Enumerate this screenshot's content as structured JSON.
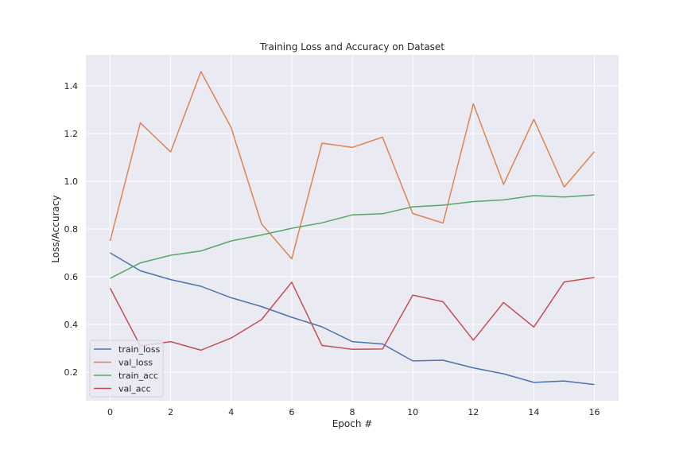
{
  "chart_data": {
    "type": "line",
    "title": "Training Loss and Accuracy on Dataset",
    "xlabel": "Epoch #",
    "ylabel": "Loss/Accuracy",
    "x": [
      0,
      1,
      2,
      3,
      4,
      5,
      6,
      7,
      8,
      9,
      10,
      11,
      12,
      13,
      14,
      15,
      16
    ],
    "xlim": [
      -0.8,
      16.8
    ],
    "ylim": [
      0.08,
      1.53
    ],
    "xticks": [
      0,
      2,
      4,
      6,
      8,
      10,
      12,
      14,
      16
    ],
    "yticks": [
      0.2,
      0.4,
      0.6,
      0.8,
      1.0,
      1.2,
      1.4
    ],
    "ytick_labels": [
      "0.2",
      "0.4",
      "0.6",
      "0.8",
      "1.0",
      "1.2",
      "1.4"
    ],
    "grid": true,
    "legend_position": "lower-left",
    "series": [
      {
        "name": "train_loss",
        "color": "#4c72b0",
        "values": [
          0.7,
          0.625,
          0.588,
          0.56,
          0.512,
          0.475,
          0.43,
          0.39,
          0.328,
          0.318,
          0.247,
          0.25,
          0.218,
          0.193,
          0.157,
          0.163,
          0.148
        ]
      },
      {
        "name": "val_loss",
        "color": "#dd8452",
        "values": [
          0.75,
          1.245,
          1.123,
          1.46,
          1.225,
          0.822,
          0.675,
          1.16,
          1.142,
          1.185,
          0.865,
          0.825,
          1.325,
          0.987,
          1.26,
          0.976,
          1.124
        ]
      },
      {
        "name": "train_acc",
        "color": "#55a868",
        "values": [
          0.593,
          0.658,
          0.69,
          0.708,
          0.75,
          0.775,
          0.803,
          0.826,
          0.859,
          0.864,
          0.893,
          0.9,
          0.915,
          0.922,
          0.94,
          0.934,
          0.943
        ]
      },
      {
        "name": "val_acc",
        "color": "#c44e52",
        "values": [
          0.552,
          0.31,
          0.328,
          0.292,
          0.343,
          0.42,
          0.577,
          0.312,
          0.296,
          0.297,
          0.523,
          0.495,
          0.334,
          0.492,
          0.389,
          0.578,
          0.597
        ]
      }
    ]
  }
}
